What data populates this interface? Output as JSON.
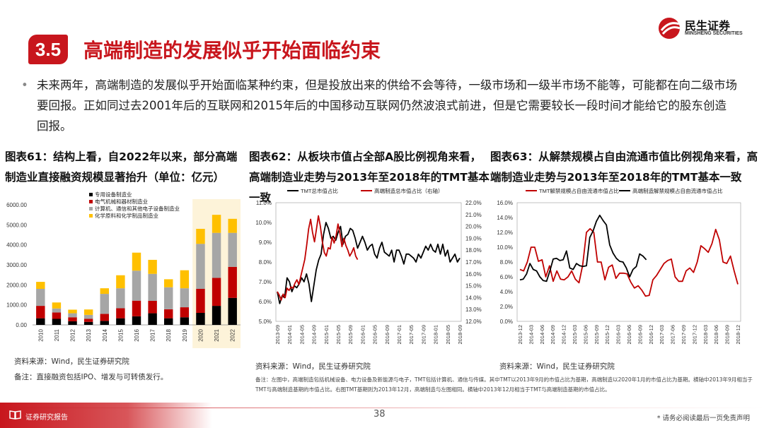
{
  "header": {
    "section_number": "3.5",
    "title": "高端制造的发展似乎开始面临约束",
    "logo_cn": "民生证券",
    "logo_en": "MINSHENG SECURITIES"
  },
  "bullet_text": "未来两年，高端制造的发展似乎开始面临某种约束，但是投放出来的供给不会等待，一级市场和一级半市场不能等，可能都在向二级市场要回报。正如同过去2001年后的互联网和2015年后的中国移动互联网仍然波浪式前进，但是它需要较长一段时间才能给它的股东创造回报。",
  "figures": {
    "fig61": {
      "title": "图表61：结构上看，自2022年以来，部分高端制造业直接融资规模显著抬升（单位：亿元）",
      "source": "资料来源：Wind，民生证券研究院",
      "note": "备注：直接融资包括IPO、增发与可转债发行。"
    },
    "fig62": {
      "title": "图表62：从板块市值占全部A股比例视角来看，高端制造业走势与2013年至2018年的TMT基本一致",
      "source": "资料来源：Wind，民生证券研究院"
    },
    "fig63": {
      "title": "图表63：从解禁规模占自由流通市值比例视角来看，高端制造业走势与2013年至2018年的TMT基本一致",
      "source": "资料来源：Wind，民生证券研究院"
    },
    "shared_note": "备注：左图中，高端制造包括机械设备、电力设备及新能源与电子，TMT包括计算机、通信与传媒。其中TMT以2013年9月的市值占比为基期，高端制造以2020年1月的市值占比为基期。横轴中2013年9月相当于TMT与高端制造基期的市值占比。右图TMT基期则为2013年12月，高端制造与左图相同。横轴中2013年12月相当于TMT与高端制造基期的市值占比。"
  },
  "footer": {
    "label": "证券研究报告",
    "page_number": "38",
    "disclaimer": "* 请务必阅读最后一页免责声明"
  },
  "colors": {
    "brand_red": "#c8161d",
    "bar_black": "#000000",
    "bar_red": "#c00000",
    "bar_gray": "#a6a6a6",
    "bar_yellow": "#ffc000",
    "highlight": "#fdf3d9"
  },
  "chart_data": [
    {
      "type": "bar",
      "stacked": true,
      "categories": [
        "2010",
        "2011",
        "2012",
        "2013",
        "2014",
        "2015",
        "2016",
        "2017",
        "2018",
        "2019",
        "2020",
        "2021",
        "2022"
      ],
      "series": [
        {
          "name": "专用设备制造业",
          "color": "#000000",
          "values": [
            330,
            300,
            180,
            150,
            200,
            330,
            430,
            580,
            330,
            380,
            600,
            950,
            1350
          ]
        },
        {
          "name": "电气机械和器材制造业",
          "color": "#c00000",
          "values": [
            620,
            320,
            200,
            150,
            350,
            500,
            780,
            620,
            450,
            500,
            1200,
            1400,
            1550
          ]
        },
        {
          "name": "计算机、通信和其他电子设备制造业",
          "color": "#a6a6a6",
          "values": [
            850,
            200,
            200,
            200,
            1000,
            1000,
            1500,
            1350,
            1100,
            950,
            2250,
            2250,
            1700
          ]
        },
        {
          "name": "化学原料和化学制品制造业",
          "color": "#ffc000",
          "values": [
            350,
            300,
            180,
            270,
            280,
            650,
            900,
            700,
            400,
            900,
            750,
            900,
            700
          ]
        }
      ],
      "ylim": [
        0,
        6000
      ],
      "yticks": [
        "0.00",
        "1000.00",
        "2000.00",
        "3000.00",
        "4000.00",
        "5000.00",
        "6000.00"
      ],
      "highlight_categories": [
        "2020",
        "2021",
        "2022"
      ],
      "legend_position": "top-left"
    },
    {
      "type": "line",
      "x_ticks": [
        "2013-09",
        "2014-01",
        "2014-05",
        "2014-09",
        "2015-01",
        "2015-05",
        "2015-09",
        "2016-01",
        "2016-05",
        "2016-09",
        "2017-01",
        "2017-05",
        "2017-09",
        "2018-01",
        "2018-05",
        "2018-09"
      ],
      "y_left_ticks": [
        "5.0%",
        "6.0%",
        "7.0%",
        "8.0%",
        "9.0%",
        "10.0%",
        "11.0%"
      ],
      "y_right_ticks": [
        "12.0%",
        "13.0%",
        "14.0%",
        "15.0%",
        "16.0%",
        "17.0%",
        "18.0%",
        "19.0%",
        "20.0%",
        "21.0%",
        "22.0%"
      ],
      "ylim_left": [
        5,
        11
      ],
      "ylim_right": [
        12,
        22
      ],
      "series": [
        {
          "name": "TMT总市值占比",
          "axis": "left",
          "color": "#000000",
          "values": [
            6.5,
            5.9,
            6.3,
            6.2,
            7.2,
            7.0,
            6.5,
            6.8,
            6.7,
            6.9,
            7.2,
            7.0,
            7.4,
            6.9,
            6.0,
            6.8,
            7.6,
            8.1,
            8.4,
            9.4,
            10.0,
            9.7,
            9.2,
            9.3,
            9.1,
            9.5,
            9.8,
            8.9,
            9.3,
            9.4,
            9.7,
            9.6,
            9.2,
            8.7,
            9.0,
            9.3,
            9.0,
            8.6,
            8.8,
            8.9,
            8.4,
            8.2,
            8.7,
            9.0,
            8.5,
            8.4,
            8.3,
            8.6,
            8.0,
            8.6,
            8.6,
            8.3,
            7.9,
            8.4,
            8.4,
            8.3,
            8.2,
            8.0,
            8.4,
            8.2,
            8.5,
            8.8,
            8.6,
            8.9,
            8.6,
            8.5,
            8.9,
            8.4,
            8.9,
            8.3,
            8.6,
            8.0,
            8.2,
            8.4,
            8.0,
            8.2
          ]
        },
        {
          "name": "高端制造总市值占比（右轴）",
          "axis": "right",
          "color": "#c00000",
          "values": [
            14.5,
            14.2,
            13.8,
            14.3,
            14.0,
            14.8,
            14.6,
            14.9,
            14.8,
            15.2,
            15.5,
            15.1,
            15.8,
            16.5,
            17.2,
            18.4,
            19.8,
            20.6,
            19.5,
            18.7,
            19.8,
            20.9,
            20.0,
            18.7,
            17.8,
            17.5,
            18.2,
            18.1,
            19.1,
            18.6,
            19.2,
            20.2,
            19.4,
            18.3,
            19.0,
            18.4,
            18.0,
            17.5,
            17.8,
            18.2,
            17.5,
            17.2
          ]
        }
      ],
      "legend_position": "top"
    },
    {
      "type": "line",
      "x_ticks": [
        "2013-12",
        "2014-03",
        "2014-06",
        "2014-09",
        "2014-12",
        "2015-03",
        "2015-06",
        "2015-09",
        "2015-12",
        "2016-03",
        "2016-06",
        "2016-09",
        "2016-12",
        "2017-03",
        "2017-06",
        "2017-09",
        "2017-12",
        "2018-03",
        "2018-06",
        "2018-09",
        "2018-12"
      ],
      "y_ticks": [
        "0.0%",
        "2.0%",
        "4.0%",
        "6.0%",
        "8.0%",
        "10.0%",
        "12.0%",
        "14.0%",
        "16.0%"
      ],
      "ylim": [
        0,
        16
      ],
      "series": [
        {
          "name": "TMT解禁规模占自由流通市值占比",
          "color": "#c00000",
          "values": [
            7.0,
            6.8,
            8.0,
            10.0,
            10.0,
            8.1,
            8.3,
            6.0,
            7.5,
            5.4,
            6.8,
            5.7,
            5.6,
            6.0,
            6.8,
            5.7,
            5.2,
            7.6,
            12.0,
            12.5,
            12.0,
            8.0,
            8.0,
            5.6,
            7.3,
            7.6,
            5.8,
            6.5,
            6.5,
            6.4,
            5.3,
            4.5,
            4.8,
            4.2,
            3.4,
            3.5,
            5.6,
            6.2,
            7.0,
            7.8,
            8.2,
            8.4,
            6.0,
            5.4,
            5.4,
            6.8,
            7.2,
            6.6,
            8.0,
            10.2,
            9.8,
            9.3,
            10.5,
            12.4,
            11.0,
            8.0,
            7.8,
            8.8,
            6.8,
            5.0
          ]
        },
        {
          "name": "高端制造解禁规模占自由流通市值占比",
          "color": "#000000",
          "values": [
            5.6,
            5.7,
            6.4,
            7.8,
            7.0,
            6.8,
            6.0,
            5.5,
            5.4,
            6.8,
            8.4,
            8.5,
            8.2,
            8.3,
            9.5,
            7.2,
            7.0,
            7.8,
            7.5,
            7.4,
            7.5,
            11.3,
            12.2,
            13.5,
            14.3,
            13.6,
            13.0,
            10.3,
            9.2,
            8.5,
            8.1,
            8.0,
            7.2,
            6.0,
            7.0,
            7.4,
            9.1,
            8.8,
            8.3
          ]
        }
      ],
      "legend_position": "top"
    }
  ]
}
